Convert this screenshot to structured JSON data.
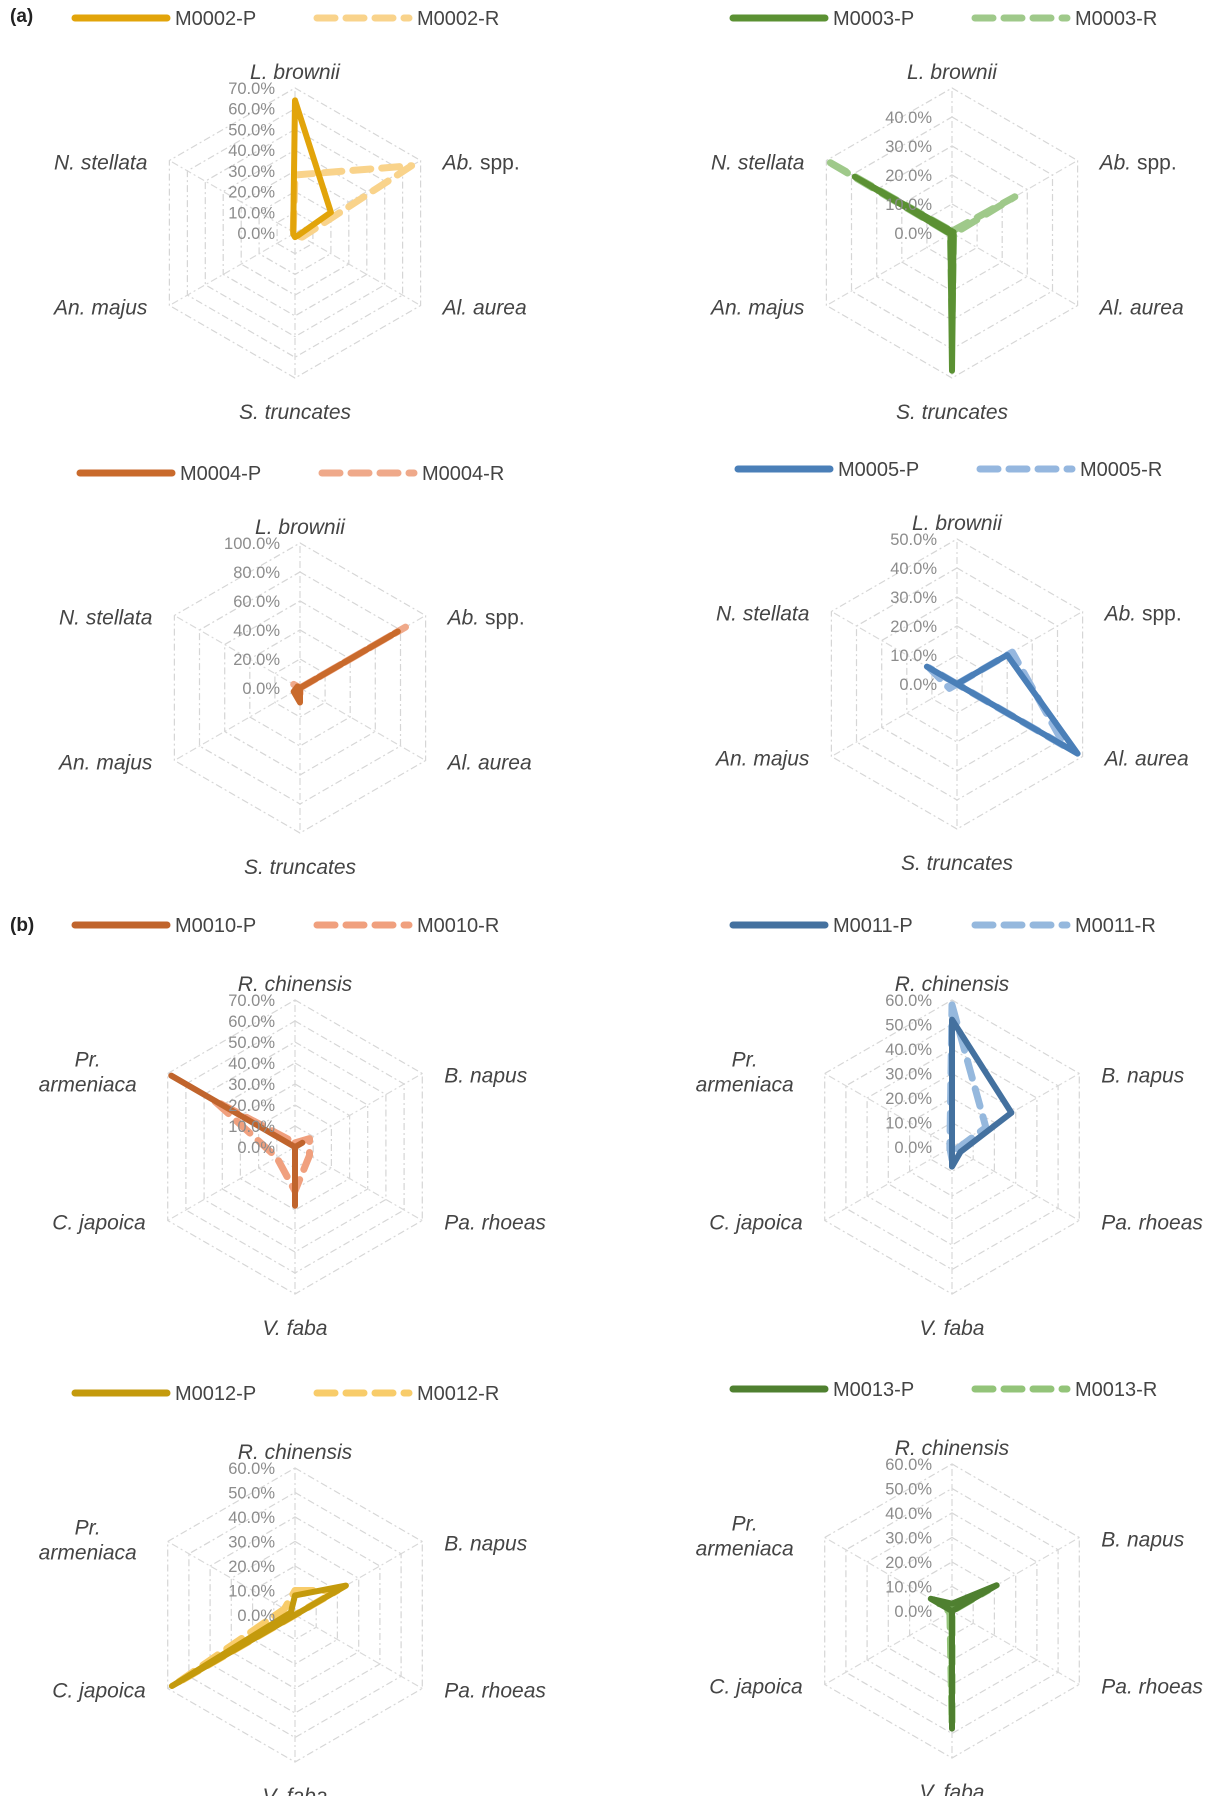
{
  "panel_labels": {
    "a": "(a)",
    "b": "(b)"
  },
  "chart_data": [
    {
      "type": "radar",
      "panel": "a",
      "axes": [
        {
          "italic": "L.",
          "rest": " brownii",
          "multiline": false
        },
        {
          "italic": "Ab.",
          "rest": " spp.",
          "multiline": false
        },
        {
          "italic": "Al.",
          "rest": " aurea",
          "multiline": false
        },
        {
          "italic": "S.",
          "rest": " truncates",
          "multiline": false
        },
        {
          "italic": "An.",
          "rest": " majus",
          "multiline": false
        },
        {
          "italic": "N.",
          "rest": " stellata",
          "multiline": false
        }
      ],
      "ticks": [
        "0.0%",
        "10.0%",
        "20.0%",
        "30.0%",
        "40.0%",
        "50.0%",
        "60.0%",
        "70.0%"
      ],
      "rmax": 70,
      "series": [
        {
          "name": "M0002-P",
          "style": "solid",
          "color": "#e2a40a",
          "values": [
            64,
            20,
            2,
            2,
            1,
            1
          ]
        },
        {
          "name": "M0002-R",
          "style": "dashed",
          "color": "#f9d38b",
          "values": [
            28,
            65,
            4,
            1,
            0,
            1
          ]
        }
      ]
    },
    {
      "type": "radar",
      "panel": "a",
      "axes": [
        {
          "italic": "L.",
          "rest": " brownii",
          "multiline": false
        },
        {
          "italic": "Ab.",
          "rest": " spp.",
          "multiline": false
        },
        {
          "italic": "Al.",
          "rest": " aurea",
          "multiline": false
        },
        {
          "italic": "S.",
          "rest": " truncates",
          "multiline": false
        },
        {
          "italic": "An.",
          "rest": " majus",
          "multiline": false
        },
        {
          "italic": "N.",
          "rest": " stellata",
          "multiline": false
        }
      ],
      "ticks": [
        "0.0%",
        "10.0%",
        "20.0%",
        "30.0%",
        "40.0%",
        "50.0%"
      ],
      "tick_labels_shown": [
        "0.0%",
        "10.0%",
        "20.0%",
        "30.0%",
        "40.0%"
      ],
      "rmax": 40,
      "series": [
        {
          "name": "M0003-P",
          "style": "solid",
          "color": "#5b9133",
          "values": [
            0.5,
            0.5,
            0.5,
            38,
            0.5,
            31
          ]
        },
        {
          "name": "M0003-R",
          "style": "dashed",
          "color": "#9fc98a",
          "values": [
            0.5,
            20,
            0.5,
            24,
            0.5,
            41
          ]
        }
      ]
    },
    {
      "type": "radar",
      "panel": "a",
      "axes": [
        {
          "italic": "L.",
          "rest": " brownii",
          "multiline": false
        },
        {
          "italic": "Ab.",
          "rest": " spp.",
          "multiline": false
        },
        {
          "italic": "Al.",
          "rest": " aurea",
          "multiline": false
        },
        {
          "italic": "S.",
          "rest": " truncates",
          "multiline": false
        },
        {
          "italic": "An.",
          "rest": " majus",
          "multiline": false
        },
        {
          "italic": "N.",
          "rest": " stellata",
          "multiline": false
        }
      ],
      "ticks": [
        "0.0%",
        "20.0%",
        "40.0%",
        "60.0%",
        "80.0%",
        "100.0%"
      ],
      "rmax": 100,
      "series": [
        {
          "name": "M0004-P",
          "style": "solid",
          "color": "#c96a2c",
          "values": [
            0,
            78,
            0,
            10,
            5,
            2
          ]
        },
        {
          "name": "M0004-R",
          "style": "dashed",
          "color": "#efa98a",
          "values": [
            0,
            84,
            0,
            4,
            3,
            5
          ]
        }
      ]
    },
    {
      "type": "radar",
      "panel": "a",
      "axes": [
        {
          "italic": "L.",
          "rest": " brownii",
          "multiline": false
        },
        {
          "italic": "Ab.",
          "rest": " spp.",
          "multiline": false
        },
        {
          "italic": "Al.",
          "rest": " aurea",
          "multiline": false
        },
        {
          "italic": "S.",
          "rest": " truncates",
          "multiline": false
        },
        {
          "italic": "An.",
          "rest": " majus",
          "multiline": false
        },
        {
          "italic": "N.",
          "rest": " stellata",
          "multiline": false
        }
      ],
      "ticks": [
        "0.0%",
        "10.0%",
        "20.0%",
        "30.0%",
        "40.0%",
        "50.0%"
      ],
      "rmax": 50,
      "series": [
        {
          "name": "M0005-P",
          "style": "solid",
          "color": "#4a7fb8",
          "values": [
            0,
            20,
            48,
            0,
            0,
            12
          ]
        },
        {
          "name": "M0005-R",
          "style": "dashed",
          "color": "#95b7df",
          "values": [
            0,
            22,
            43,
            0,
            3,
            11
          ]
        }
      ]
    },
    {
      "type": "radar",
      "panel": "b",
      "axes": [
        {
          "italic": "R.",
          "rest": " chinensis",
          "multiline": false
        },
        {
          "italic": "B.",
          "rest": " napus",
          "multiline": false
        },
        {
          "italic": "Pa.",
          "rest": " rhoeas",
          "multiline": false
        },
        {
          "italic": "V.",
          "rest": " faba",
          "multiline": false
        },
        {
          "italic": "C.",
          "rest": " japoica",
          "multiline": false
        },
        {
          "italic": "Pr.",
          "rest": "armeniaca",
          "multiline": true
        }
      ],
      "ticks": [
        "0.0%",
        "10.0%",
        "20.0%",
        "30.0%",
        "40.0%",
        "50.0%",
        "60.0%",
        "70.0%"
      ],
      "rmax": 70,
      "series": [
        {
          "name": "M0010-P",
          "style": "solid",
          "color": "#c0642c",
          "values": [
            0,
            4,
            0,
            28,
            0,
            68
          ]
        },
        {
          "name": "M0010-R",
          "style": "dashed",
          "color": "#f0a07e",
          "values": [
            2,
            8,
            8,
            21,
            10,
            45
          ]
        }
      ]
    },
    {
      "type": "radar",
      "panel": "b",
      "axes": [
        {
          "italic": "R.",
          "rest": " chinensis",
          "multiline": false
        },
        {
          "italic": "B.",
          "rest": " napus",
          "multiline": false
        },
        {
          "italic": "Pa.",
          "rest": " rhoeas",
          "multiline": false
        },
        {
          "italic": "V.",
          "rest": " faba",
          "multiline": false
        },
        {
          "italic": "C.",
          "rest": " japoica",
          "multiline": false
        },
        {
          "italic": "Pr.",
          "rest": "armeniaca",
          "multiline": true
        }
      ],
      "ticks": [
        "0.0%",
        "10.0%",
        "20.0%",
        "30.0%",
        "40.0%",
        "50.0%",
        "60.0%"
      ],
      "rmax": 60,
      "series": [
        {
          "name": "M0011-P",
          "style": "solid",
          "color": "#44719f",
          "values": [
            52,
            28,
            4,
            8,
            0,
            0
          ]
        },
        {
          "name": "M0011-R",
          "style": "dashed",
          "color": "#95b8dd",
          "values": [
            58,
            16,
            2,
            5,
            1,
            1
          ]
        }
      ]
    },
    {
      "type": "radar",
      "panel": "b",
      "axes": [
        {
          "italic": "R.",
          "rest": " chinensis",
          "multiline": false
        },
        {
          "italic": "B.",
          "rest": " napus",
          "multiline": false
        },
        {
          "italic": "Pa.",
          "rest": " rhoeas",
          "multiline": false
        },
        {
          "italic": "V.",
          "rest": " faba",
          "multiline": false
        },
        {
          "italic": "C.",
          "rest": " japoica",
          "multiline": false
        },
        {
          "italic": "Pr.",
          "rest": "armeniaca",
          "multiline": true
        }
      ],
      "ticks": [
        "0.0%",
        "10.0%",
        "20.0%",
        "30.0%",
        "40.0%",
        "50.0%",
        "60.0%"
      ],
      "rmax": 60,
      "series": [
        {
          "name": "M0012-P",
          "style": "solid",
          "color": "#c49a0c",
          "values": [
            8,
            24,
            0,
            0,
            58,
            2
          ]
        },
        {
          "name": "M0012-R",
          "style": "dashed",
          "color": "#f8cc6a",
          "values": [
            10,
            20,
            0,
            0,
            56,
            5
          ]
        }
      ]
    },
    {
      "type": "radar",
      "panel": "b",
      "axes": [
        {
          "italic": "R.",
          "rest": " chinensis",
          "multiline": false
        },
        {
          "italic": "B.",
          "rest": " napus",
          "multiline": false
        },
        {
          "italic": "Pa.",
          "rest": " rhoeas",
          "multiline": false
        },
        {
          "italic": "V.",
          "rest": " faba",
          "multiline": false
        },
        {
          "italic": "C.",
          "rest": " japoica",
          "multiline": false
        },
        {
          "italic": "Pr.",
          "rest": "armeniaca",
          "multiline": true
        }
      ],
      "ticks": [
        "0.0%",
        "10.0%",
        "20.0%",
        "30.0%",
        "40.0%",
        "50.0%",
        "60.0%"
      ],
      "rmax": 60,
      "series": [
        {
          "name": "M0013-P",
          "style": "solid",
          "color": "#4f8030",
          "values": [
            3,
            21,
            0,
            48,
            0,
            10
          ]
        },
        {
          "name": "M0013-R",
          "style": "dashed",
          "color": "#93c479",
          "values": [
            2,
            17,
            0,
            46,
            1,
            6
          ]
        }
      ]
    }
  ]
}
